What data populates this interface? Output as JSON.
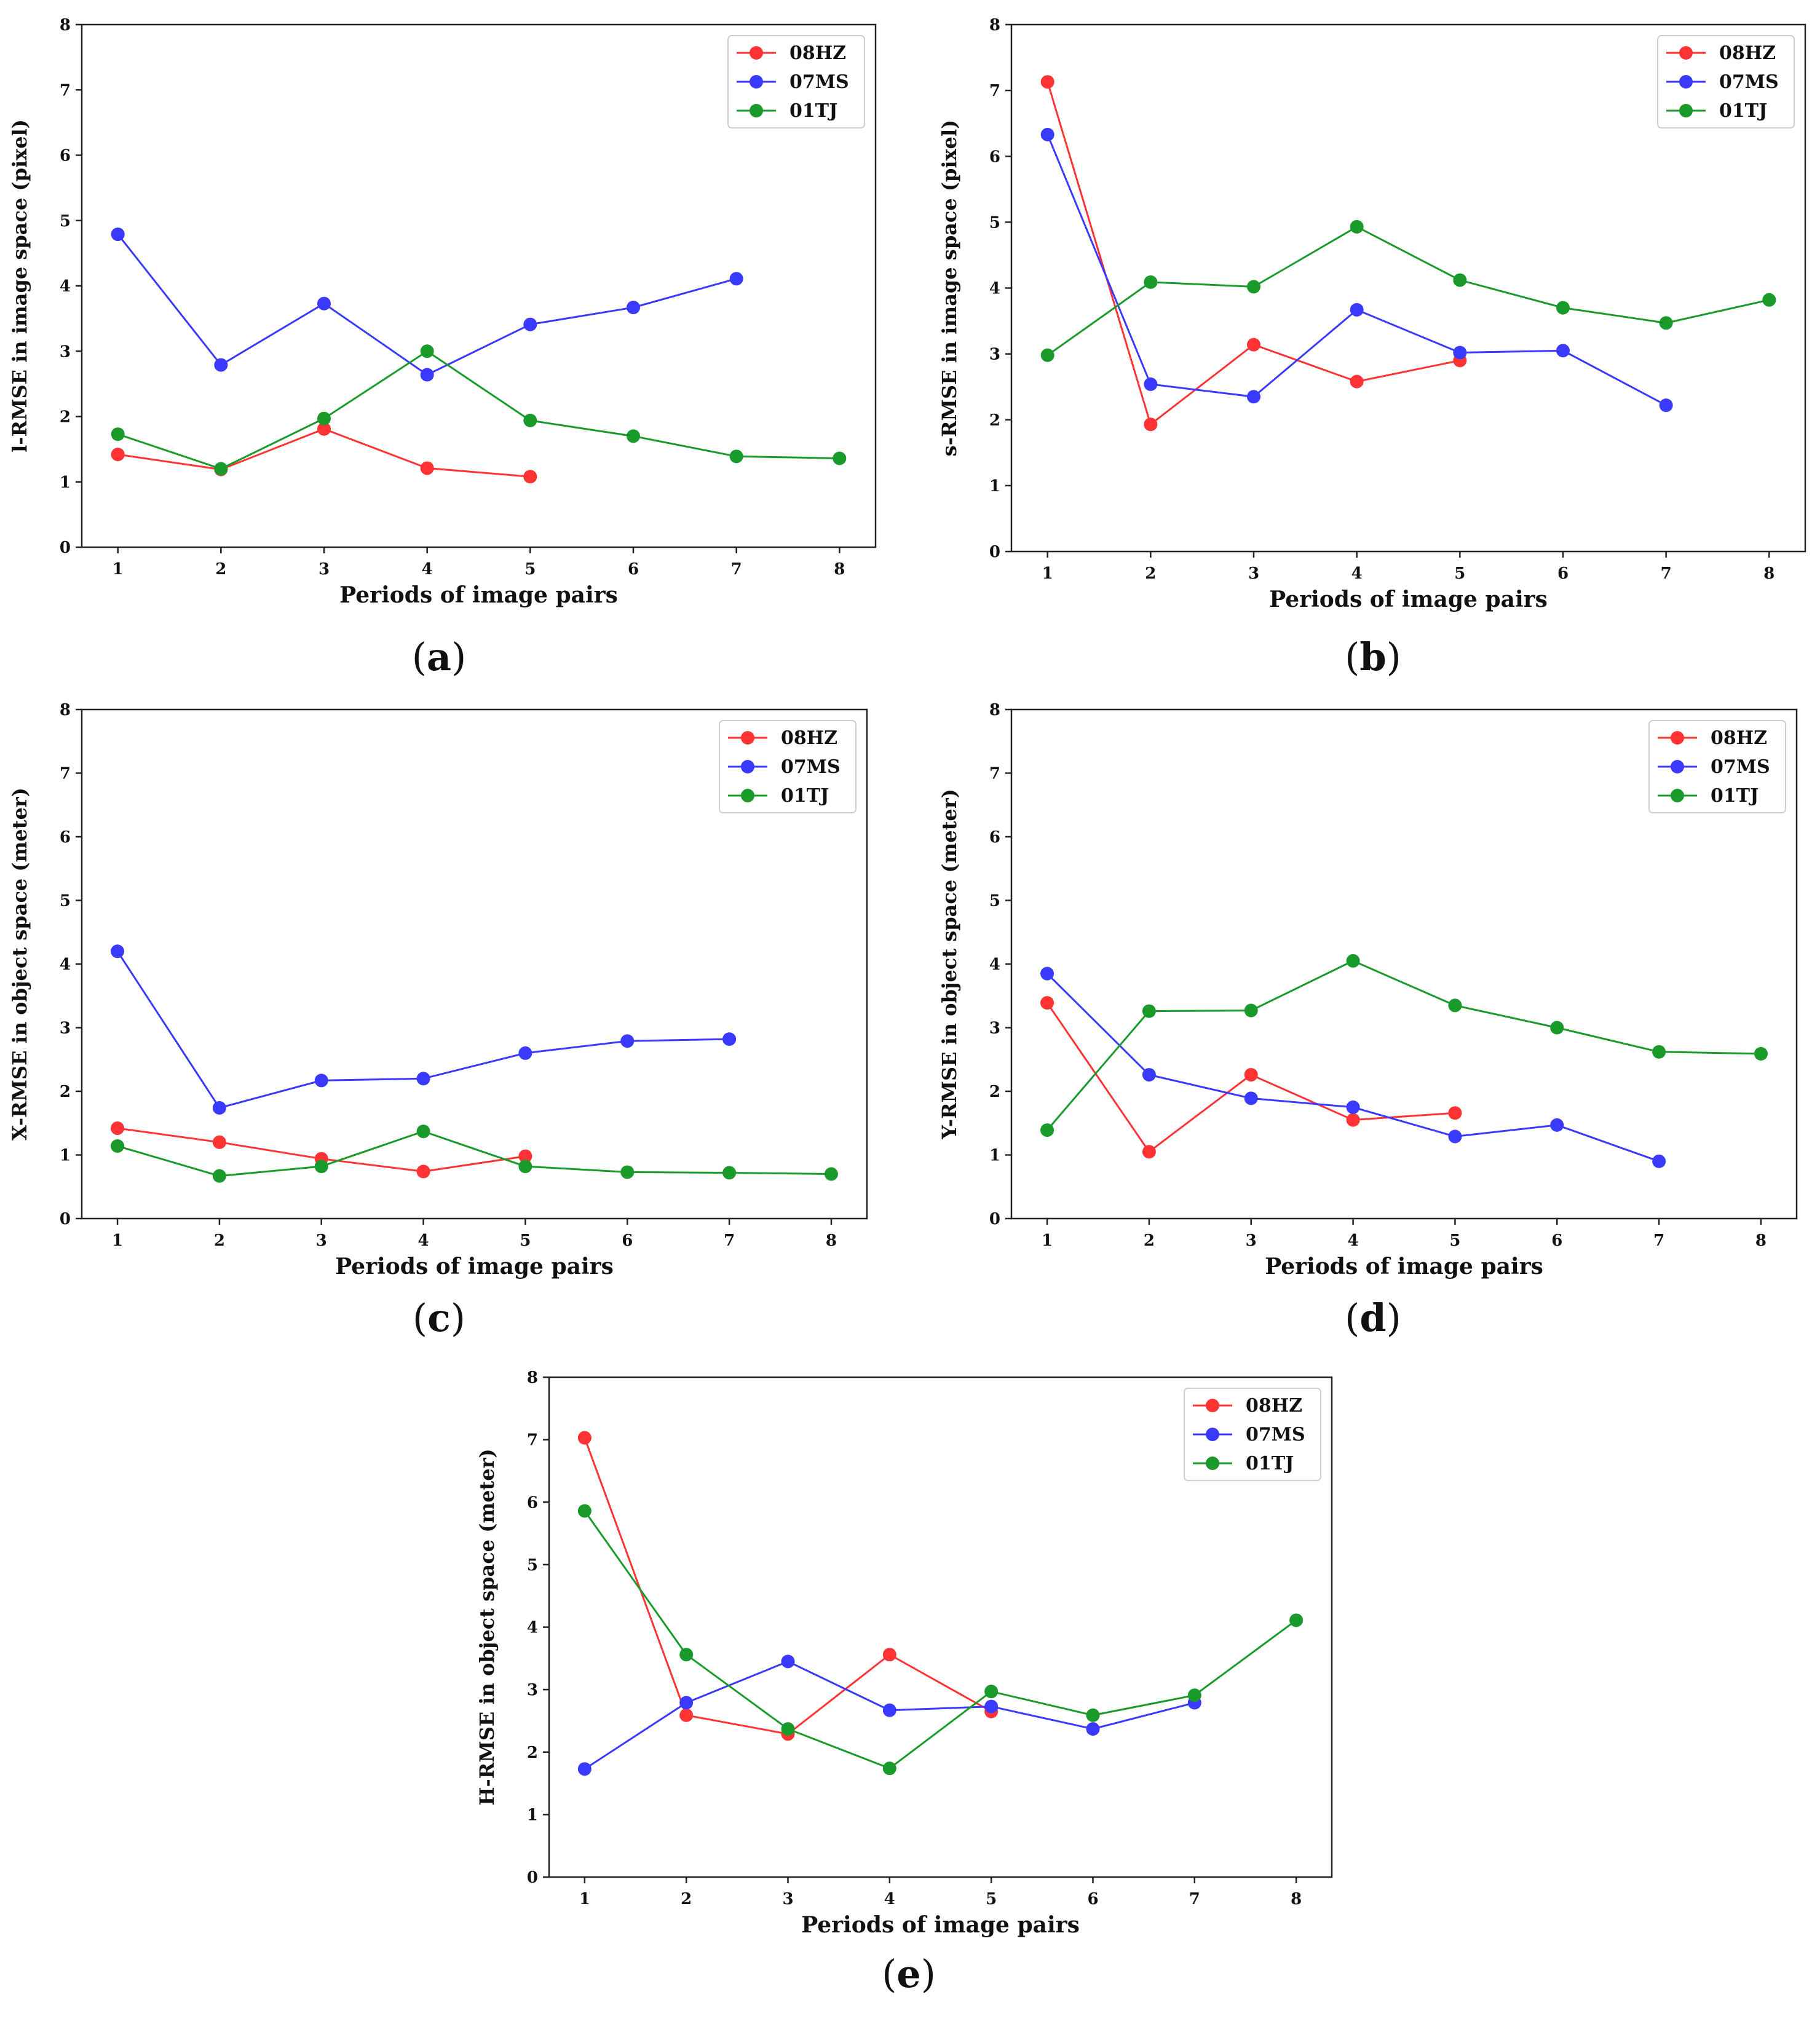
{
  "colors": {
    "08HZ": "#ff3333",
    "07MS": "#3a3aff",
    "01TJ": "#1a9a2a"
  },
  "chart_data": [
    {
      "id": "a",
      "type": "line",
      "caption_letter": "a",
      "ylabel": "l-RMSE in image space (pixel)",
      "xlabel": "Periods of image pairs",
      "xlim": [
        0.65,
        8.35
      ],
      "ylim": [
        0,
        8
      ],
      "x_ticks": [
        1,
        2,
        3,
        4,
        5,
        6,
        7,
        8
      ],
      "y_ticks": [
        0,
        1,
        2,
        3,
        4,
        5,
        6,
        7,
        8
      ],
      "legend_position": "top-right",
      "series": [
        {
          "name": "08HZ",
          "x": [
            1,
            2,
            3,
            4,
            5
          ],
          "values": [
            1.42,
            1.19,
            1.81,
            1.21,
            1.08
          ]
        },
        {
          "name": "07MS",
          "x": [
            1,
            2,
            3,
            4,
            5,
            6,
            7
          ],
          "values": [
            4.79,
            2.79,
            3.73,
            2.64,
            3.41,
            3.67,
            4.11
          ]
        },
        {
          "name": "01TJ",
          "x": [
            1,
            2,
            3,
            4,
            5,
            6,
            7,
            8
          ],
          "values": [
            1.73,
            1.2,
            1.97,
            3.0,
            1.94,
            1.7,
            1.39,
            1.36
          ]
        }
      ]
    },
    {
      "id": "b",
      "type": "line",
      "caption_letter": "b",
      "ylabel": "s-RMSE in image space (pixel)",
      "xlabel": "Periods of image pairs",
      "xlim": [
        0.65,
        8.35
      ],
      "ylim": [
        0,
        8
      ],
      "x_ticks": [
        1,
        2,
        3,
        4,
        5,
        6,
        7,
        8
      ],
      "y_ticks": [
        0,
        1,
        2,
        3,
        4,
        5,
        6,
        7,
        8
      ],
      "legend_position": "top-right",
      "series": [
        {
          "name": "08HZ",
          "x": [
            1,
            2,
            3,
            4,
            5
          ],
          "values": [
            7.13,
            1.93,
            3.14,
            2.58,
            2.9
          ]
        },
        {
          "name": "07MS",
          "x": [
            1,
            2,
            3,
            4,
            5,
            6,
            7
          ],
          "values": [
            6.33,
            2.54,
            2.35,
            3.67,
            3.02,
            3.05,
            2.22
          ]
        },
        {
          "name": "01TJ",
          "x": [
            1,
            2,
            3,
            4,
            5,
            6,
            7,
            8
          ],
          "values": [
            2.98,
            4.09,
            4.02,
            4.93,
            4.12,
            3.7,
            3.47,
            3.82
          ]
        }
      ]
    },
    {
      "id": "c",
      "type": "line",
      "caption_letter": "c",
      "ylabel": "X-RMSE in object space (meter)",
      "xlabel": "Periods of image pairs",
      "xlim": [
        0.65,
        8.35
      ],
      "ylim": [
        0,
        8
      ],
      "x_ticks": [
        1,
        2,
        3,
        4,
        5,
        6,
        7,
        8
      ],
      "y_ticks": [
        0,
        1,
        2,
        3,
        4,
        5,
        6,
        7,
        8
      ],
      "legend_position": "top-right",
      "series": [
        {
          "name": "08HZ",
          "x": [
            1,
            2,
            3,
            4,
            5
          ],
          "values": [
            1.42,
            1.2,
            0.94,
            0.74,
            0.98
          ]
        },
        {
          "name": "07MS",
          "x": [
            1,
            2,
            3,
            4,
            5,
            6,
            7
          ],
          "values": [
            4.2,
            1.74,
            2.17,
            2.2,
            2.6,
            2.79,
            2.82
          ]
        },
        {
          "name": "01TJ",
          "x": [
            1,
            2,
            3,
            4,
            5,
            6,
            7,
            8
          ],
          "values": [
            1.14,
            0.67,
            0.82,
            1.37,
            0.82,
            0.73,
            0.72,
            0.7
          ]
        }
      ]
    },
    {
      "id": "d",
      "type": "line",
      "caption_letter": "d",
      "ylabel": "Y-RMSE in object space (meter)",
      "xlabel": "Periods of image pairs",
      "xlim": [
        0.65,
        8.35
      ],
      "ylim": [
        0,
        8
      ],
      "x_ticks": [
        1,
        2,
        3,
        4,
        5,
        6,
        7,
        8
      ],
      "y_ticks": [
        0,
        1,
        2,
        3,
        4,
        5,
        6,
        7,
        8
      ],
      "legend_position": "top-right",
      "series": [
        {
          "name": "08HZ",
          "x": [
            1,
            2,
            3,
            4,
            5
          ],
          "values": [
            3.39,
            1.05,
            2.26,
            1.55,
            1.66
          ]
        },
        {
          "name": "07MS",
          "x": [
            1,
            2,
            3,
            4,
            5,
            6,
            7
          ],
          "values": [
            3.85,
            2.26,
            1.89,
            1.75,
            1.29,
            1.47,
            0.9
          ]
        },
        {
          "name": "01TJ",
          "x": [
            1,
            2,
            3,
            4,
            5,
            6,
            7,
            8
          ],
          "values": [
            1.39,
            3.26,
            3.27,
            4.05,
            3.35,
            3.0,
            2.62,
            2.59
          ]
        }
      ]
    },
    {
      "id": "e",
      "type": "line",
      "caption_letter": "e",
      "ylabel": "H-RMSE in object space (meter)",
      "xlabel": "Periods of image pairs",
      "xlim": [
        0.65,
        8.35
      ],
      "ylim": [
        0,
        8
      ],
      "x_ticks": [
        1,
        2,
        3,
        4,
        5,
        6,
        7,
        8
      ],
      "y_ticks": [
        0,
        1,
        2,
        3,
        4,
        5,
        6,
        7,
        8
      ],
      "legend_position": "top-right",
      "series": [
        {
          "name": "08HZ",
          "x": [
            1,
            2,
            3,
            4,
            5
          ],
          "values": [
            7.03,
            2.59,
            2.29,
            3.56,
            2.65
          ]
        },
        {
          "name": "07MS",
          "x": [
            1,
            2,
            3,
            4,
            5,
            6,
            7
          ],
          "values": [
            1.73,
            2.79,
            3.45,
            2.67,
            2.73,
            2.37,
            2.79
          ]
        },
        {
          "name": "01TJ",
          "x": [
            1,
            2,
            3,
            4,
            5,
            6,
            7,
            8
          ],
          "values": [
            5.86,
            3.56,
            2.37,
            1.74,
            2.97,
            2.59,
            2.91,
            4.11
          ]
        }
      ]
    }
  ]
}
